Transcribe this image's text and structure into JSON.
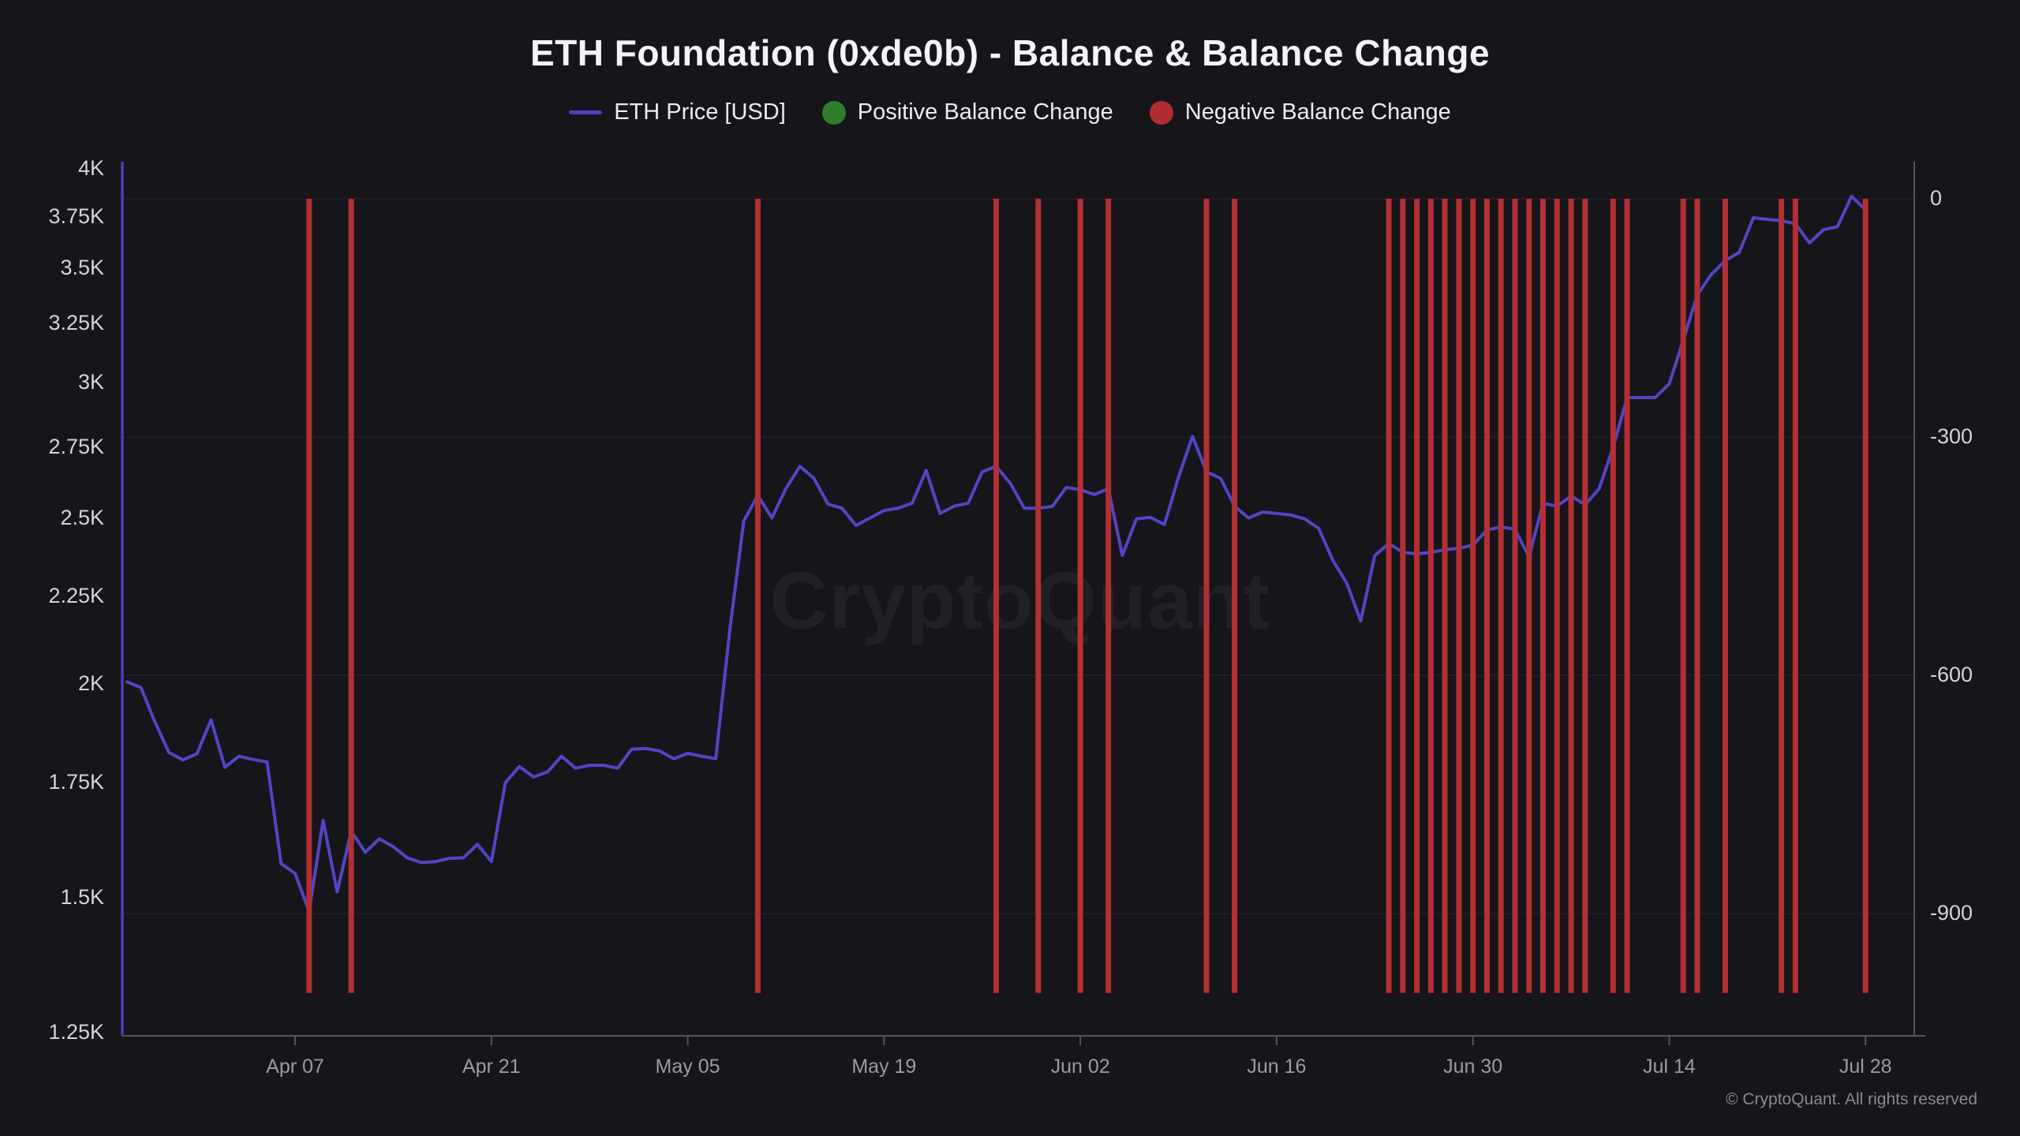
{
  "header": {
    "title": "ETH Foundation (0xde0b) - Balance & Balance Change"
  },
  "legend": {
    "items": [
      {
        "id": "eth-price",
        "label": "ETH Price [USD]",
        "swatch": "line",
        "color": "#4b40c4"
      },
      {
        "id": "positive-balance-change",
        "label": "Positive Balance Change",
        "swatch": "dot",
        "color": "#2e7d2f"
      },
      {
        "id": "negative-balance-change",
        "label": "Negative Balance Change",
        "swatch": "dot",
        "color": "#b02c31"
      }
    ]
  },
  "watermark": "CryptoQuant",
  "footer": {
    "copyright": "© CryptoQuant. All rights reserved"
  },
  "colors": {
    "background": "#161519",
    "price_line": "#5145c5",
    "left_axis_line": "#4b3fc0",
    "bar_negative": "#b23034",
    "axis_gray": "#55555e",
    "gridline": "rgba(255,255,255,0.055)"
  },
  "chart_data": {
    "type": "combo",
    "title": "ETH Foundation (0xde0b) - Balance & Balance Change",
    "left_axis": {
      "label": "ETH Price [USD]",
      "scale": "log",
      "min": 1250,
      "max": 4000,
      "tick_labels": [
        "4K",
        "3.75K",
        "3.5K",
        "3.25K",
        "3K",
        "2.75K",
        "2.5K",
        "2.25K",
        "2K",
        "1.75K",
        "1.5K",
        "1.25K"
      ],
      "tick_values": [
        4000,
        3750,
        3500,
        3250,
        3000,
        2750,
        2500,
        2250,
        2000,
        1750,
        1500,
        1250
      ]
    },
    "right_axis": {
      "label": "Balance Change [ETH]",
      "scale": "linear",
      "tick_labels": [
        "0",
        "-300",
        "-600",
        "-900"
      ],
      "tick_values": [
        0,
        -300,
        -600,
        -900
      ]
    },
    "x_axis": {
      "tick_labels": [
        "Apr 07",
        "Apr 21",
        "May 05",
        "May 19",
        "Jun 02",
        "Jun 16",
        "Jun 30",
        "Jul 14",
        "Jul 28"
      ],
      "tick_dates": [
        "04-07",
        "04-21",
        "05-05",
        "05-19",
        "06-02",
        "06-16",
        "06-30",
        "07-14",
        "07-28"
      ]
    },
    "grid": "horizontal-right-axis-only",
    "legend_position": "top-center",
    "series": [
      {
        "name": "ETH Price [USD]",
        "type": "line",
        "axis": "left",
        "points": [
          [
            "03-26",
            2005
          ],
          [
            "03-27",
            1990
          ],
          [
            "03-28",
            1900
          ],
          [
            "03-29",
            1823
          ],
          [
            "03-30",
            1805
          ],
          [
            "03-31",
            1820
          ],
          [
            "04-01",
            1905
          ],
          [
            "04-02",
            1787
          ],
          [
            "04-03",
            1814
          ],
          [
            "04-04",
            1806
          ],
          [
            "04-05",
            1800
          ],
          [
            "04-06",
            1570
          ],
          [
            "04-07",
            1549
          ],
          [
            "04-08",
            1472
          ],
          [
            "04-09",
            1664
          ],
          [
            "04-10",
            1511
          ],
          [
            "04-11",
            1640
          ],
          [
            "04-12",
            1594
          ],
          [
            "04-13",
            1623
          ],
          [
            "04-14",
            1606
          ],
          [
            "04-15",
            1582
          ],
          [
            "04-16",
            1572
          ],
          [
            "04-17",
            1574
          ],
          [
            "04-18",
            1581
          ],
          [
            "04-19",
            1582
          ],
          [
            "04-20",
            1611
          ],
          [
            "04-21",
            1574
          ],
          [
            "04-22",
            1751
          ],
          [
            "04-23",
            1789
          ],
          [
            "04-24",
            1764
          ],
          [
            "04-25",
            1776
          ],
          [
            "04-26",
            1814
          ],
          [
            "04-27",
            1785
          ],
          [
            "04-28",
            1792
          ],
          [
            "04-29",
            1792
          ],
          [
            "04-30",
            1785
          ],
          [
            "05-01",
            1831
          ],
          [
            "05-02",
            1833
          ],
          [
            "05-03",
            1827
          ],
          [
            "05-04",
            1808
          ],
          [
            "05-05",
            1821
          ],
          [
            "05-06",
            1814
          ],
          [
            "05-07",
            1808
          ],
          [
            "05-08",
            2150
          ],
          [
            "05-09",
            2490
          ],
          [
            "05-10",
            2577
          ],
          [
            "05-11",
            2500
          ],
          [
            "05-12",
            2600
          ],
          [
            "05-13",
            2680
          ],
          [
            "05-14",
            2637
          ],
          [
            "05-15",
            2547
          ],
          [
            "05-16",
            2533
          ],
          [
            "05-17",
            2475
          ],
          [
            "05-18",
            2500
          ],
          [
            "05-19",
            2525
          ],
          [
            "05-20",
            2533
          ],
          [
            "05-21",
            2550
          ],
          [
            "05-22",
            2665
          ],
          [
            "05-23",
            2515
          ],
          [
            "05-24",
            2540
          ],
          [
            "05-25",
            2550
          ],
          [
            "05-26",
            2660
          ],
          [
            "05-27",
            2680
          ],
          [
            "05-28",
            2620
          ],
          [
            "05-29",
            2533
          ],
          [
            "05-30",
            2533
          ],
          [
            "05-31",
            2539
          ],
          [
            "06-01",
            2605
          ],
          [
            "06-02",
            2597
          ],
          [
            "06-03",
            2580
          ],
          [
            "06-04",
            2600
          ],
          [
            "06-05",
            2377
          ],
          [
            "06-06",
            2497
          ],
          [
            "06-07",
            2502
          ],
          [
            "06-08",
            2478
          ],
          [
            "06-09",
            2640
          ],
          [
            "06-10",
            2790
          ],
          [
            "06-11",
            2660
          ],
          [
            "06-12",
            2637
          ],
          [
            "06-13",
            2540
          ],
          [
            "06-14",
            2500
          ],
          [
            "06-15",
            2520
          ],
          [
            "06-16",
            2515
          ],
          [
            "06-17",
            2510
          ],
          [
            "06-18",
            2497
          ],
          [
            "06-19",
            2465
          ],
          [
            "06-20",
            2362
          ],
          [
            "06-21",
            2290
          ],
          [
            "06-22",
            2176
          ],
          [
            "06-23",
            2377
          ],
          [
            "06-24",
            2415
          ],
          [
            "06-25",
            2387
          ],
          [
            "06-26",
            2382
          ],
          [
            "06-27",
            2387
          ],
          [
            "06-28",
            2395
          ],
          [
            "06-29",
            2400
          ],
          [
            "06-30",
            2410
          ],
          [
            "07-01",
            2460
          ],
          [
            "07-02",
            2470
          ],
          [
            "07-03",
            2462
          ],
          [
            "07-04",
            2372
          ],
          [
            "07-05",
            2550
          ],
          [
            "07-06",
            2540
          ],
          [
            "07-07",
            2575
          ],
          [
            "07-08",
            2545
          ],
          [
            "07-09",
            2600
          ],
          [
            "07-10",
            2750
          ],
          [
            "07-11",
            2940
          ],
          [
            "07-12",
            2940
          ],
          [
            "07-13",
            2940
          ],
          [
            "07-14",
            2995
          ],
          [
            "07-15",
            3175
          ],
          [
            "07-16",
            3375
          ],
          [
            "07-17",
            3470
          ],
          [
            "07-18",
            3535
          ],
          [
            "07-19",
            3575
          ],
          [
            "07-20",
            3745
          ],
          [
            "07-21",
            3737
          ],
          [
            "07-22",
            3730
          ],
          [
            "07-23",
            3715
          ],
          [
            "07-24",
            3620
          ],
          [
            "07-25",
            3685
          ],
          [
            "07-26",
            3700
          ],
          [
            "07-27",
            3855
          ],
          [
            "07-28",
            3785
          ]
        ]
      },
      {
        "name": "Positive Balance Change",
        "type": "bar",
        "axis": "right",
        "points": []
      },
      {
        "name": "Negative Balance Change",
        "type": "bar",
        "axis": "right",
        "bar_value": -1000,
        "dates": [
          "04-08",
          "04-11",
          "05-10",
          "05-27",
          "05-30",
          "06-02",
          "06-04",
          "06-11",
          "06-13",
          "06-24",
          "06-25",
          "06-26",
          "06-27",
          "06-28",
          "06-29",
          "06-30",
          "07-01",
          "07-02",
          "07-03",
          "07-04",
          "07-05",
          "07-06",
          "07-07",
          "07-08",
          "07-10",
          "07-11",
          "07-15",
          "07-16",
          "07-18",
          "07-22",
          "07-23",
          "07-28"
        ]
      }
    ]
  }
}
